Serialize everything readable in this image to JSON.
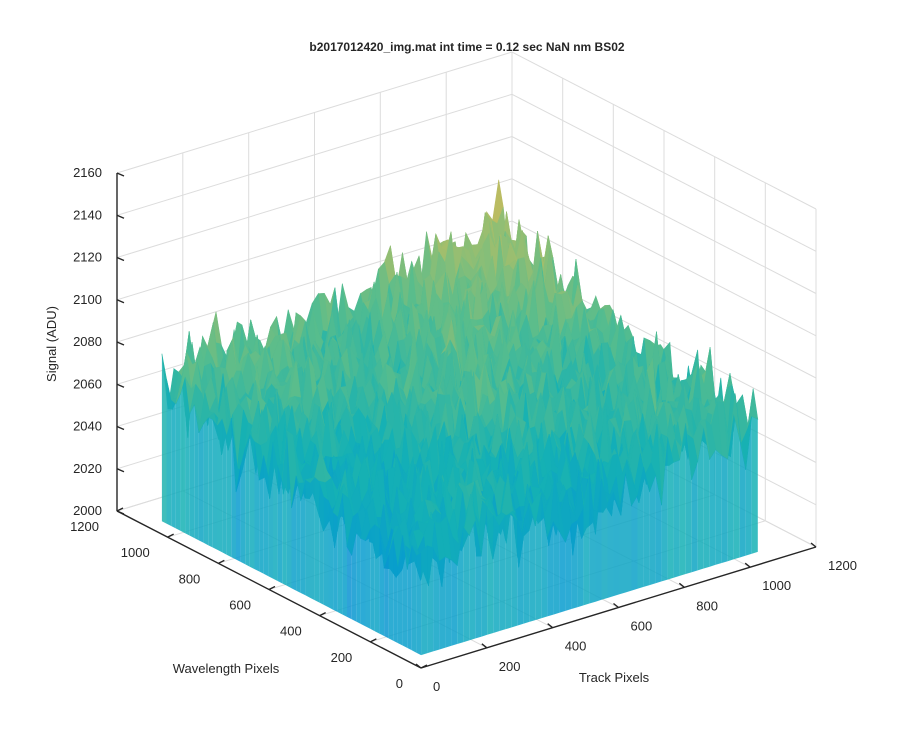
{
  "chart_data": {
    "type": "surface",
    "title": "b2017012420_img.mat int time = 0.12 sec  NaN nm BS02",
    "xlabel": "Track Pixels",
    "ylabel": "Wavelength Pixels",
    "zlabel": "Signal (ADU)",
    "xlim": [
      0,
      1200
    ],
    "ylim": [
      0,
      1200
    ],
    "zlim": [
      2000,
      2160
    ],
    "xticks": [
      "0",
      "200",
      "400",
      "600",
      "800",
      "1000",
      "1200"
    ],
    "yticks": [
      "0",
      "200",
      "400",
      "600",
      "800",
      "1000",
      "1200"
    ],
    "zticks": [
      "2000",
      "2020",
      "2040",
      "2060",
      "2080",
      "2100",
      "2120",
      "2140",
      "2160"
    ],
    "data_extent": {
      "x": [
        1,
        1024
      ],
      "y": [
        1,
        1024
      ]
    },
    "signal_summary": {
      "baseline_mean": 2045,
      "high_region_mean": 2090,
      "noise_amplitude": 30,
      "colormap": "parula"
    },
    "grid": true
  }
}
